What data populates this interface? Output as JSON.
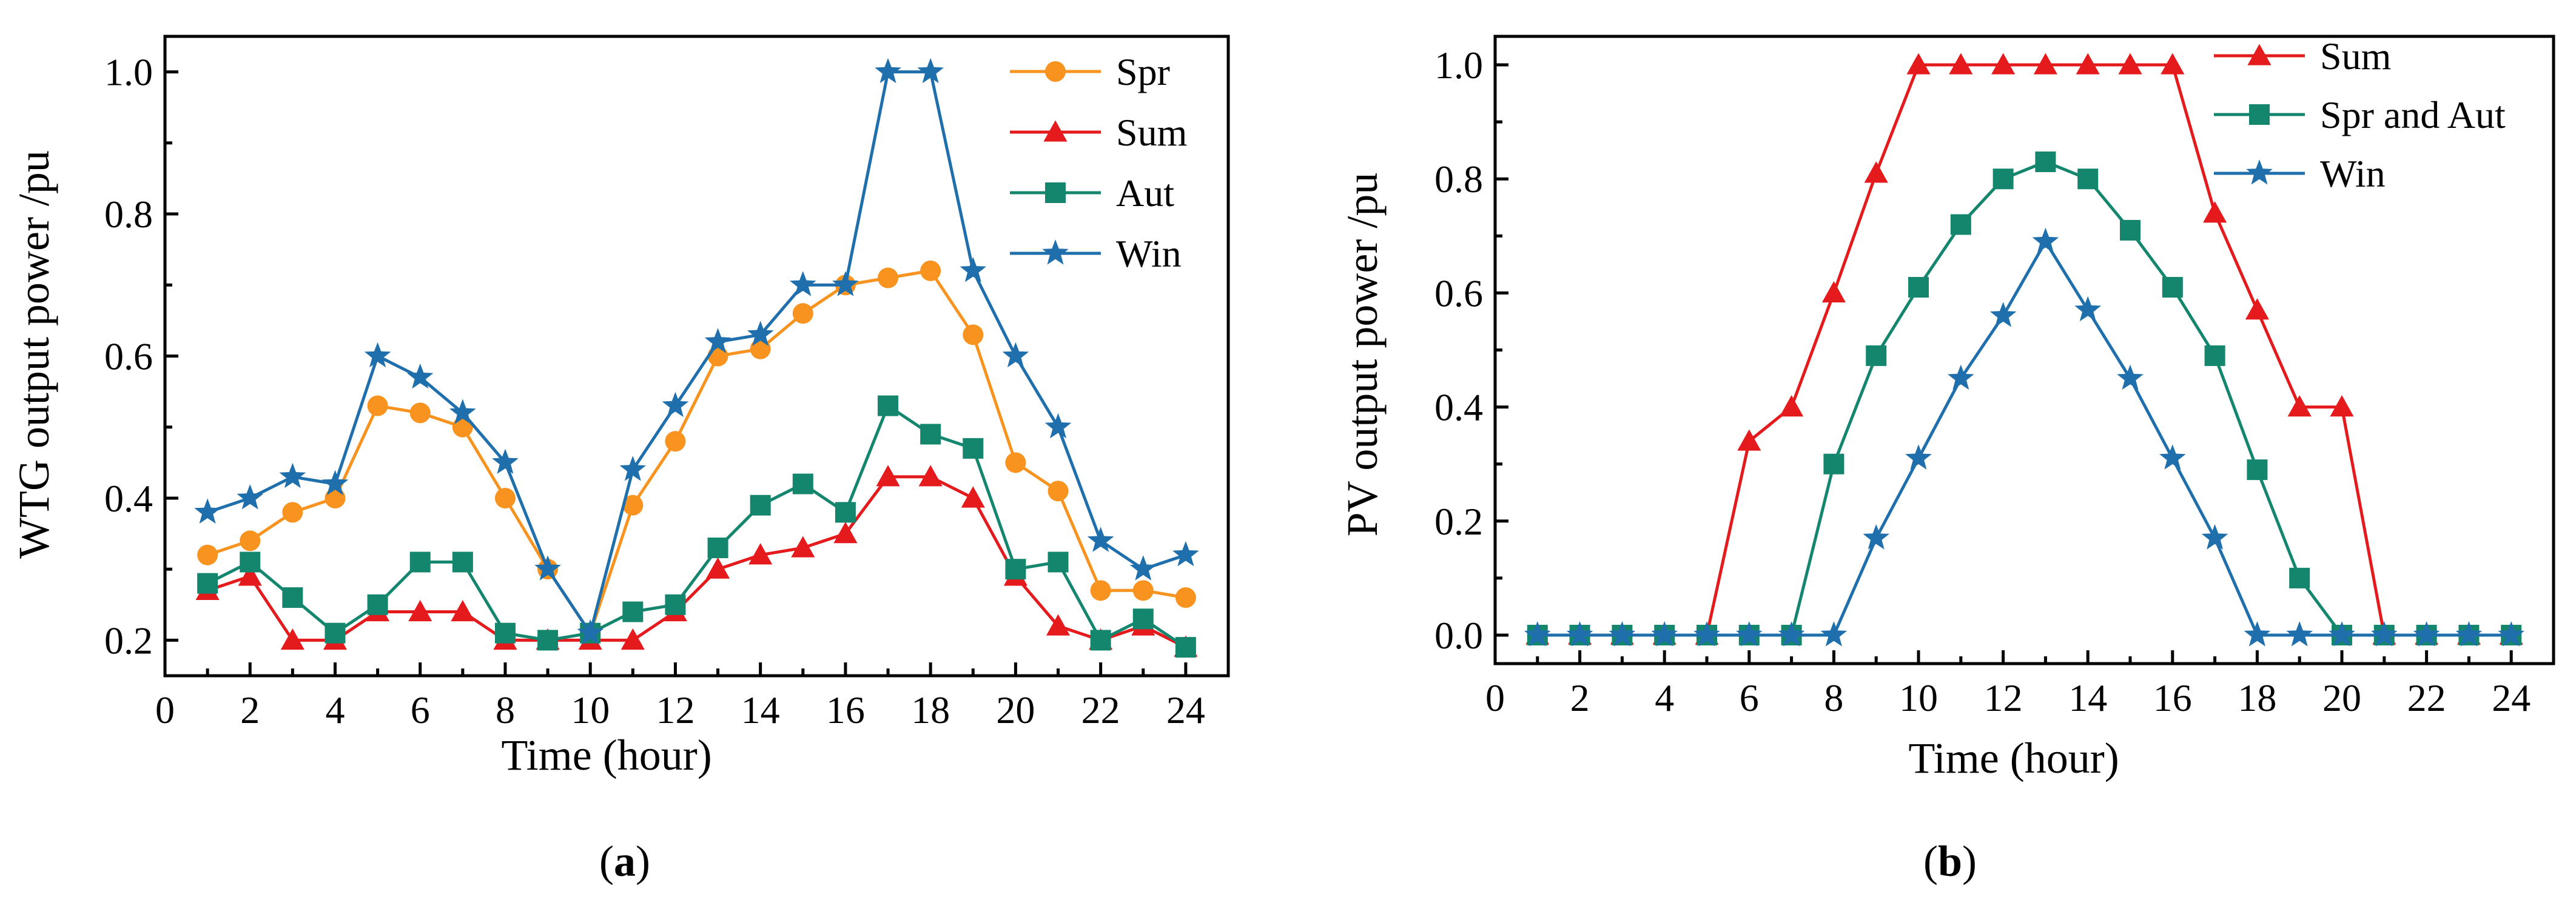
{
  "chart_data": [
    {
      "id": "a",
      "type": "line",
      "caption": "a",
      "xlabel": "Time (hour)",
      "ylabel": "WTG output power /pu",
      "xlim": [
        0,
        25
      ],
      "ylim": [
        0.15,
        1.05
      ],
      "xticks": [
        "0",
        "2",
        "4",
        "6",
        "8",
        "10",
        "12",
        "14",
        "16",
        "18",
        "20",
        "22",
        "24"
      ],
      "yticks": [
        "0.2",
        "0.4",
        "0.6",
        "0.8",
        "1.0"
      ],
      "x": [
        1,
        2,
        3,
        4,
        5,
        6,
        7,
        8,
        9,
        10,
        11,
        12,
        13,
        14,
        15,
        16,
        17,
        18,
        19,
        20,
        21,
        22,
        23,
        24
      ],
      "legend_position": "top-right",
      "series": [
        {
          "name": "Spr",
          "color": "#f7931e",
          "marker": "circle",
          "values": [
            0.32,
            0.34,
            0.38,
            0.4,
            0.53,
            0.52,
            0.5,
            0.4,
            0.3,
            0.21,
            0.39,
            0.48,
            0.6,
            0.61,
            0.66,
            0.7,
            0.71,
            0.72,
            0.63,
            0.45,
            0.41,
            0.27,
            0.27,
            0.26
          ]
        },
        {
          "name": "Sum",
          "color": "#e41a1c",
          "marker": "triangle",
          "values": [
            0.27,
            0.29,
            0.2,
            0.2,
            0.24,
            0.24,
            0.24,
            0.2,
            0.2,
            0.2,
            0.2,
            0.24,
            0.3,
            0.32,
            0.33,
            0.35,
            0.43,
            0.43,
            0.4,
            0.29,
            0.22,
            0.2,
            0.22,
            0.19
          ]
        },
        {
          "name": "Aut",
          "color": "#14866e",
          "marker": "square",
          "values": [
            0.28,
            0.31,
            0.26,
            0.21,
            0.25,
            0.31,
            0.31,
            0.21,
            0.2,
            0.21,
            0.24,
            0.25,
            0.33,
            0.39,
            0.42,
            0.38,
            0.53,
            0.49,
            0.47,
            0.3,
            0.31,
            0.2,
            0.23,
            0.19
          ]
        },
        {
          "name": "Win",
          "color": "#1f6fad",
          "marker": "star",
          "values": [
            0.38,
            0.4,
            0.43,
            0.42,
            0.6,
            0.57,
            0.52,
            0.45,
            0.3,
            0.21,
            0.44,
            0.53,
            0.62,
            0.63,
            0.7,
            0.7,
            1.0,
            1.0,
            0.72,
            0.6,
            0.5,
            0.34,
            0.3,
            0.32
          ]
        }
      ]
    },
    {
      "id": "b",
      "type": "line",
      "caption": "b",
      "xlabel": "Time (hour)",
      "ylabel": "PV output power /pu",
      "xlim": [
        0,
        25
      ],
      "ylim": [
        -0.05,
        1.05
      ],
      "xticks": [
        "0",
        "2",
        "4",
        "6",
        "8",
        "10",
        "12",
        "14",
        "16",
        "18",
        "20",
        "22",
        "24"
      ],
      "yticks": [
        "0.0",
        "0.2",
        "0.4",
        "0.6",
        "0.8",
        "1.0"
      ],
      "x": [
        1,
        2,
        3,
        4,
        5,
        6,
        7,
        8,
        9,
        10,
        11,
        12,
        13,
        14,
        15,
        16,
        17,
        18,
        19,
        20,
        21,
        22,
        23,
        24
      ],
      "legend_position": "top-right",
      "series": [
        {
          "name": "Sum",
          "color": "#e41a1c",
          "marker": "triangle",
          "values": [
            0,
            0,
            0,
            0,
            0,
            0.34,
            0.4,
            0.6,
            0.81,
            1.0,
            1.0,
            1.0,
            1.0,
            1.0,
            1.0,
            1.0,
            0.74,
            0.57,
            0.4,
            0.4,
            0,
            0,
            0,
            0
          ]
        },
        {
          "name": "Spr and Aut",
          "color": "#14866e",
          "marker": "square",
          "values": [
            0,
            0,
            0,
            0,
            0,
            0,
            0,
            0.3,
            0.49,
            0.61,
            0.72,
            0.8,
            0.83,
            0.8,
            0.71,
            0.61,
            0.49,
            0.29,
            0.1,
            0,
            0,
            0,
            0,
            0
          ]
        },
        {
          "name": "Win",
          "color": "#1f6fad",
          "marker": "star",
          "values": [
            0,
            0,
            0,
            0,
            0,
            0,
            0,
            0,
            0.17,
            0.31,
            0.45,
            0.56,
            0.69,
            0.57,
            0.45,
            0.31,
            0.17,
            0,
            0,
            0,
            0,
            0,
            0,
            0
          ]
        }
      ]
    }
  ]
}
